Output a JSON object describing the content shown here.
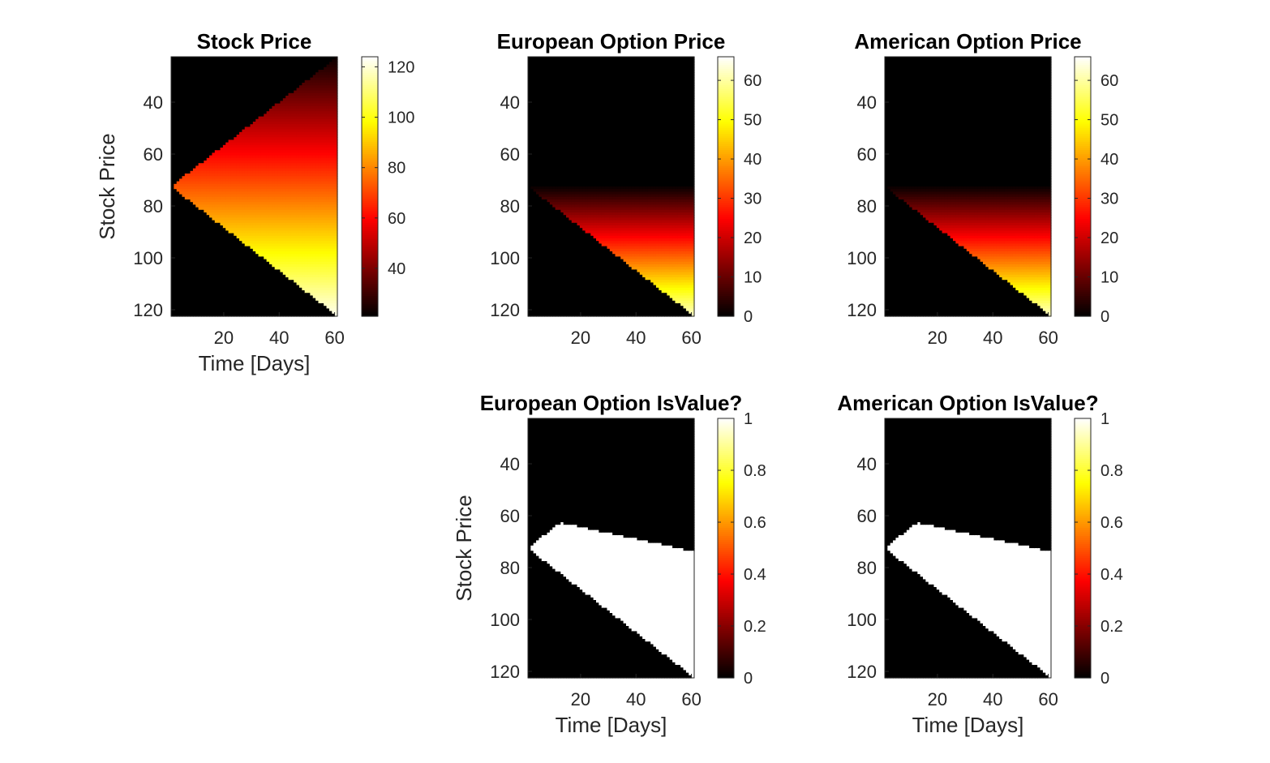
{
  "figure": {
    "background": "#ffffff",
    "colormap": "hot"
  },
  "chart_data": [
    {
      "type": "heatmap",
      "title": "Stock Price",
      "xlabel": "Time [Days]",
      "ylabel": "Stock Price",
      "x_range": [
        1,
        61
      ],
      "y_range": [
        22.5,
        122.5
      ],
      "y_reversed": true,
      "xticks": [
        20,
        40,
        60
      ],
      "yticks": [
        40,
        60,
        80,
        100,
        120
      ],
      "color_range": [
        21,
        124
      ],
      "colorbar_ticks": [
        40,
        60,
        80,
        100,
        120
      ],
      "field": "stock_price",
      "description_of_field": "triangular binomial lattice starting at 72 on day 1, spreading to 22.5–122.5 at day 61; value equals stock price"
    },
    {
      "type": "heatmap",
      "title": "European Option Price",
      "xlabel": "",
      "ylabel": "",
      "x_range": [
        1,
        61
      ],
      "y_range": [
        22.5,
        122.5
      ],
      "y_reversed": true,
      "xticks": [
        20,
        40,
        60
      ],
      "yticks": [
        40,
        60,
        80,
        100,
        120
      ],
      "color_range": [
        0,
        66
      ],
      "colorbar_ticks": [
        0,
        10,
        20,
        30,
        40,
        50,
        60
      ],
      "field": "option_price"
    },
    {
      "type": "heatmap",
      "title": "American Option Price",
      "xlabel": "",
      "ylabel": "",
      "x_range": [
        1,
        61
      ],
      "y_range": [
        22.5,
        122.5
      ],
      "y_reversed": true,
      "xticks": [
        20,
        40,
        60
      ],
      "yticks": [
        40,
        60,
        80,
        100,
        120
      ],
      "color_range": [
        0,
        66
      ],
      "colorbar_ticks": [
        0,
        10,
        20,
        30,
        40,
        50,
        60
      ],
      "field": "option_price"
    },
    {
      "type": "heatmap",
      "title": "European Option IsValue?",
      "xlabel": "Time [Days]",
      "ylabel": "Stock Price",
      "x_range": [
        1,
        61
      ],
      "y_range": [
        22.5,
        122.5
      ],
      "y_reversed": true,
      "xticks": [
        20,
        40,
        60
      ],
      "yticks": [
        40,
        60,
        80,
        100,
        120
      ],
      "color_range": [
        0,
        1
      ],
      "colorbar_ticks": [
        0,
        0.2,
        0.4,
        0.6,
        0.8,
        1
      ],
      "field": "is_value"
    },
    {
      "type": "heatmap",
      "title": "American Option IsValue?",
      "xlabel": "Time [Days]",
      "ylabel": "",
      "x_range": [
        1,
        61
      ],
      "y_range": [
        22.5,
        122.5
      ],
      "y_reversed": true,
      "xticks": [
        20,
        40,
        60
      ],
      "yticks": [
        40,
        60,
        80,
        100,
        120
      ],
      "color_range": [
        0,
        1
      ],
      "colorbar_ticks": [
        0,
        0.2,
        0.4,
        0.6,
        0.8,
        1
      ],
      "field": "is_value"
    }
  ]
}
